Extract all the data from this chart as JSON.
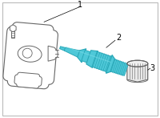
{
  "bg_color": "#ffffff",
  "border_color": "#bbbbbb",
  "line_color": "#666666",
  "highlight_color": "#4ec8d8",
  "highlight_dark": "#2aa8b8",
  "highlight_light": "#7adce8",
  "sensor_fill": "#ffffff",
  "cap_fill": "#e8e8e8",
  "label1": "1",
  "label2": "2",
  "label3": "3",
  "figsize": [
    2.0,
    1.47
  ],
  "dpi": 100
}
